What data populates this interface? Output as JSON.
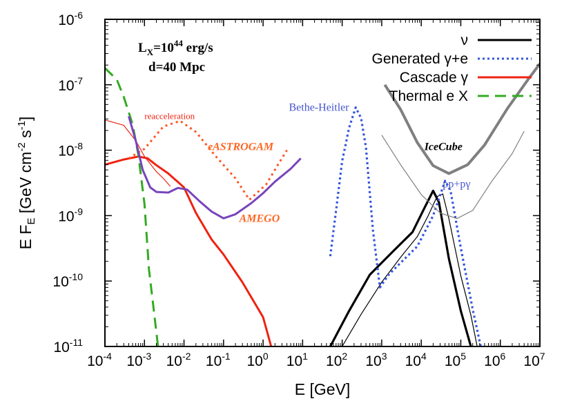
{
  "chart_data": {
    "type": "line",
    "xlabel": "E [GeV]",
    "ylabel": "E F_E [GeV cm^-2 s^-1]",
    "xscale": "log",
    "yscale": "log",
    "xlim": [
      0.0001,
      10000000
    ],
    "ylim": [
      1e-11,
      1e-06
    ],
    "x_ticks": [
      {
        "e": -4,
        "label": "10",
        "sup": "-4"
      },
      {
        "e": -3,
        "label": "10",
        "sup": "-3"
      },
      {
        "e": -2,
        "label": "10",
        "sup": "-2"
      },
      {
        "e": -1,
        "label": "10",
        "sup": "-1"
      },
      {
        "e": 0,
        "label": "10",
        "sup": "0"
      },
      {
        "e": 1,
        "label": "10",
        "sup": "1"
      },
      {
        "e": 2,
        "label": "10",
        "sup": "2"
      },
      {
        "e": 3,
        "label": "10",
        "sup": "3"
      },
      {
        "e": 4,
        "label": "10",
        "sup": "4"
      },
      {
        "e": 5,
        "label": "10",
        "sup": "5"
      },
      {
        "e": 6,
        "label": "10",
        "sup": "6"
      },
      {
        "e": 7,
        "label": "10",
        "sup": "7"
      }
    ],
    "y_ticks": [
      {
        "e": -11,
        "label": "10",
        "sup": "-11"
      },
      {
        "e": -10,
        "label": "10",
        "sup": "-10"
      },
      {
        "e": -9,
        "label": "10",
        "sup": "-9"
      },
      {
        "e": -8,
        "label": "10",
        "sup": "-8"
      },
      {
        "e": -7,
        "label": "10",
        "sup": "-7"
      },
      {
        "e": -6,
        "label": "10",
        "sup": "-6"
      }
    ],
    "info_box": {
      "line1_main": "L",
      "line1_sub": "X",
      "line1_mid": "=10",
      "line1_sup": "44",
      "line1_end": " erg/s",
      "line2": "d=40 Mpc"
    },
    "legend_position": "top-right",
    "legend": [
      {
        "label": "ν",
        "color": "#000000",
        "style": "solid"
      },
      {
        "label": "Generated γ+e",
        "color": "#3355dd",
        "style": "dotted"
      },
      {
        "label": "Cascade γ",
        "color": "#ee2211",
        "style": "solid"
      },
      {
        "label": "Thermal e X",
        "color": "#33aa22",
        "style": "dashed"
      }
    ],
    "series": [
      {
        "name": "ν",
        "color": "#000000",
        "width": 3.2,
        "dash": "",
        "points": [
          [
            50,
            1e-11
          ],
          [
            150,
            3.5e-11
          ],
          [
            500,
            1.25e-10
          ],
          [
            2000,
            2.9e-10
          ],
          [
            6000,
            5.6e-10
          ],
          [
            12000,
            1.3e-09
          ],
          [
            20000,
            2.4e-09
          ],
          [
            28000,
            1.6e-09
          ],
          [
            50000,
            2.2e-10
          ],
          [
            100000,
            3.5e-11
          ],
          [
            180000,
            1e-11
          ]
        ]
      },
      {
        "color": "#000000",
        "width": 1.2,
        "dash": "",
        "points": [
          [
            100,
            1e-11
          ],
          [
            300,
            3.1e-11
          ],
          [
            1000,
            9.6e-11
          ],
          [
            3000,
            2.3e-10
          ],
          [
            8000,
            4.8e-10
          ],
          [
            15000,
            1e-09
          ],
          [
            25000,
            1.95e-09
          ],
          [
            35000,
            2.15e-09
          ],
          [
            50000,
            9e-10
          ],
          [
            100000,
            1.2e-10
          ],
          [
            180000,
            3e-11
          ],
          [
            260000,
            1e-11
          ]
        ]
      },
      {
        "color": "#3355dd",
        "width": 3.2,
        "dash": "3 4",
        "points": [
          [
            50,
            2.4e-10
          ],
          [
            70,
            1.2e-09
          ],
          [
            100,
            6.8e-09
          ],
          [
            150,
            2.2e-08
          ],
          [
            220,
            4.5e-08
          ],
          [
            300,
            3.1e-08
          ],
          [
            400,
            1.1e-08
          ],
          [
            600,
            6e-10
          ],
          [
            900,
            8e-11
          ],
          [
            1500,
            1.25e-10
          ],
          [
            3000,
            1.9e-10
          ],
          [
            8000,
            3.4e-10
          ],
          [
            20000,
            1e-09
          ],
          [
            40000,
            3.4e-09
          ],
          [
            55000,
            2.4e-09
          ],
          [
            100000,
            3.2e-10
          ],
          [
            200000,
            3.7e-11
          ],
          [
            320000,
            1e-11
          ]
        ]
      },
      {
        "color": "#ee2211",
        "width": 3,
        "dash": "",
        "points": [
          [
            0.0001,
            6e-09
          ],
          [
            0.0003,
            7.2e-09
          ],
          [
            0.0007,
            8e-09
          ],
          [
            0.0012,
            7.5e-09
          ],
          [
            0.002,
            5.9e-09
          ],
          [
            0.004,
            4.4e-09
          ],
          [
            0.01,
            2.7e-09
          ],
          [
            0.02,
            1.1e-09
          ],
          [
            0.05,
            4.3e-10
          ],
          [
            0.1,
            2.55e-10
          ],
          [
            0.3,
            9.6e-11
          ],
          [
            1,
            2.8e-11
          ],
          [
            1.6,
            1e-11
          ]
        ]
      },
      {
        "color": "#ee2211",
        "width": 1.2,
        "dash": "",
        "points": [
          [
            0.0001,
            2.9e-08
          ],
          [
            0.0003,
            2.4e-08
          ],
          [
            0.0006,
            1.4e-08
          ],
          [
            0.001,
            8e-09
          ],
          [
            0.002,
            4.7e-09
          ],
          [
            0.003,
            3.7e-09
          ],
          [
            0.0045,
            2.8e-09
          ]
        ]
      },
      {
        "color": "#33aa22",
        "width": 3,
        "dash": "16 9",
        "points": [
          [
            0.0001,
            1.8e-07
          ],
          [
            0.0002,
            1.2e-07
          ],
          [
            0.0003,
            6.5e-08
          ],
          [
            0.0005,
            2.5e-08
          ],
          [
            0.0007,
            8.5e-09
          ],
          [
            0.001,
            1.5e-09
          ],
          [
            0.0013,
            1.5e-10
          ],
          [
            0.0017,
            3.8e-11
          ],
          [
            0.0022,
            1e-11
          ]
        ]
      },
      {
        "color": "#ff5522",
        "width": 3,
        "dash": "3 5",
        "points": [
          [
            0.0004,
            7.5e-09
          ],
          [
            0.001,
            1.05e-08
          ],
          [
            0.003,
            2.3e-08
          ],
          [
            0.008,
            2.8e-08
          ],
          [
            0.02,
            1.9e-08
          ],
          [
            0.06,
            8.4e-09
          ],
          [
            0.2,
            3.7e-09
          ],
          [
            0.45,
            1.75e-09
          ],
          [
            1.2,
            3e-09
          ],
          [
            2.5,
            6.3e-09
          ],
          [
            4,
            1e-08
          ]
        ]
      },
      {
        "color": "#7744bb",
        "width": 3,
        "dash": "",
        "points": [
          [
            0.0004,
            3.3e-08
          ],
          [
            0.0006,
            1.4e-08
          ],
          [
            0.0009,
            5e-09
          ],
          [
            0.0014,
            2.7e-09
          ],
          [
            0.002,
            2.3e-09
          ],
          [
            0.004,
            2.25e-09
          ],
          [
            0.007,
            2.65e-09
          ],
          [
            0.012,
            2.5e-09
          ],
          [
            0.025,
            1.65e-09
          ],
          [
            0.05,
            1.15e-09
          ],
          [
            0.1,
            9.1e-10
          ],
          [
            0.2,
            1.05e-09
          ],
          [
            0.5,
            1.55e-09
          ],
          [
            1,
            2.2e-09
          ],
          [
            2,
            3.3e-09
          ],
          [
            5,
            5.2e-09
          ],
          [
            9,
            7.5e-09
          ]
        ]
      },
      {
        "color": "#7f7f7f",
        "width": 4,
        "dash": "",
        "points": [
          [
            1200,
            1e-07
          ],
          [
            3000,
            4.2e-08
          ],
          [
            8000,
            1.3e-08
          ],
          [
            20000,
            5.8e-09
          ],
          [
            50000,
            4.4e-09
          ],
          [
            150000,
            6e-09
          ],
          [
            400000,
            1.2e-08
          ],
          [
            1500000,
            4.3e-08
          ],
          [
            5000000,
            1.2e-07
          ],
          [
            10000000,
            2.1e-07
          ]
        ]
      },
      {
        "color": "#7f7f7f",
        "width": 1.2,
        "dash": "",
        "points": [
          [
            1000,
            1.7e-08
          ],
          [
            3000,
            6e-09
          ],
          [
            10000,
            2.1e-09
          ],
          [
            30000,
            1.1e-09
          ],
          [
            80000,
            9e-10
          ],
          [
            200000,
            1.2e-09
          ],
          [
            600000,
            3.3e-09
          ],
          [
            2000000,
            8.9e-09
          ],
          [
            4000000,
            1.95e-08
          ]
        ]
      }
    ],
    "annotations": [
      {
        "text": "reacceleration",
        "x": 0.001,
        "y": 3e-08,
        "color": "#ee2211",
        "size": 13,
        "weight": "normal",
        "style": "normal"
      },
      {
        "text": "eASTROGAM",
        "x": 0.04,
        "y": 1e-08,
        "color": "#ff6622",
        "size": 16,
        "weight": "bold",
        "style": "italic"
      },
      {
        "text": "AMEGO",
        "x": 0.25,
        "y": 8e-10,
        "color": "#ff6622",
        "size": 16,
        "weight": "bold",
        "style": "italic"
      },
      {
        "text": "Bethe-Heitler",
        "x": 4.5,
        "y": 4e-08,
        "color": "#4455cc",
        "size": 16,
        "weight": "normal",
        "style": "normal"
      },
      {
        "text": "IceCube",
        "x": 12000,
        "y": 1e-08,
        "color": "#000000",
        "size": 16,
        "weight": "bold",
        "style": "italic"
      },
      {
        "text": "pp+pγ",
        "x": 35000,
        "y": 2.7e-09,
        "color": "#4455cc",
        "size": 16,
        "weight": "normal",
        "style": "normal"
      }
    ]
  }
}
